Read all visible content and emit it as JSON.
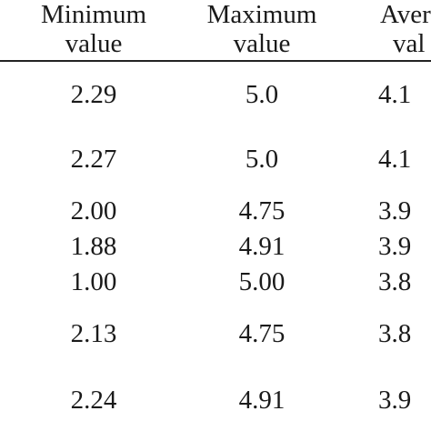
{
  "table": {
    "header": [
      [
        "Minimum",
        "value"
      ],
      [
        "Maximum",
        "value"
      ],
      [
        "Aver",
        "val"
      ]
    ],
    "rows": [
      [
        "2.29",
        "5.0",
        "4.1"
      ],
      [
        "2.27",
        "5.0",
        "4.1"
      ],
      [
        "2.00",
        "4.75",
        "3.9"
      ],
      [
        "1.88",
        "4.91",
        "3.9"
      ],
      [
        "1.00",
        "5.00",
        "3.8"
      ],
      [
        "2.13",
        "4.75",
        "3.8"
      ],
      [
        "2.24",
        "4.91",
        "3.9"
      ]
    ]
  }
}
